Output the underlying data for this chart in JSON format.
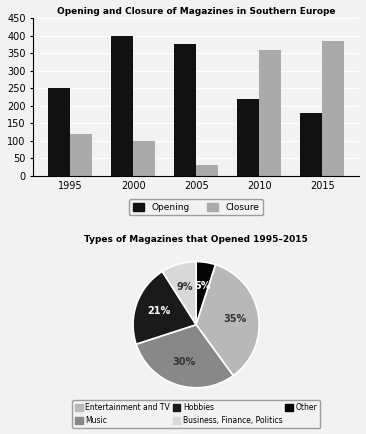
{
  "bar_title": "Opening and Closure of Magazines in Southern Europe",
  "bar_years": [
    1995,
    2000,
    2005,
    2010,
    2015
  ],
  "opening": [
    250,
    400,
    375,
    220,
    180
  ],
  "closure": [
    120,
    100,
    30,
    360,
    385
  ],
  "bar_color_opening": "#111111",
  "bar_color_closure": "#aaaaaa",
  "bar_ylim": [
    0,
    450
  ],
  "bar_yticks": [
    0,
    50,
    100,
    150,
    200,
    250,
    300,
    350,
    400,
    450
  ],
  "bar_legend": [
    "Opening",
    "Closure"
  ],
  "pie_title": "Types of Magazines that Opened 1995–2015",
  "pie_labels": [
    "Entertainment and TV",
    "Music",
    "Hobbies",
    "Business, Finance, Politics",
    "Other"
  ],
  "pie_sizes": [
    35,
    30,
    21,
    9,
    5
  ],
  "pie_colors": [
    "#b8b8b8",
    "#888888",
    "#1a1a1a",
    "#d8d8d8",
    "#050505"
  ],
  "pie_pct_colors": [
    "#333333",
    "#333333",
    "#ffffff",
    "#333333",
    "#ffffff"
  ],
  "pie_legend_labels": [
    "Entertainment and TV",
    "Music",
    "Hobbies",
    "Business, Finance, Politics",
    "Other"
  ],
  "pie_legend_colors": [
    "#b8b8b8",
    "#888888",
    "#1a1a1a",
    "#d8d8d8",
    "#050505"
  ],
  "bg_color": "#f2f2f2"
}
